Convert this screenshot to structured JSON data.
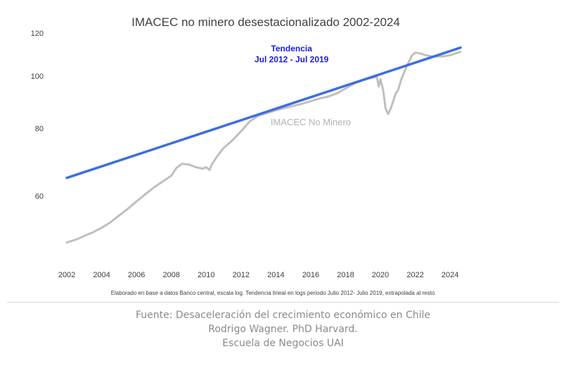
{
  "chart_data": {
    "type": "line",
    "title": "IMACEC no minero desestacionalizado 2002-2024",
    "note": "Elaborado en base a datos Banco central, escala log. Tendencia lineal en logs periodo Julio 2012- Julio 2019, extrapolada al resto",
    "xlabel": "",
    "ylabel": "",
    "log_scale_y": true,
    "xlim": [
      2002,
      2024.8
    ],
    "ylim": [
      47,
      120
    ],
    "x_ticks": [
      2002,
      2004,
      2006,
      2008,
      2010,
      2012,
      2014,
      2016,
      2018,
      2020,
      2022,
      2024
    ],
    "y_ticks": [
      60,
      80,
      100,
      120
    ],
    "grid": false,
    "annotations": [
      {
        "text": "Tendencia",
        "x": 2014.9,
        "y": 111,
        "color": "#1a1adb"
      },
      {
        "text": "Jul 2012 - Jul 2019",
        "x": 2014.9,
        "y": 106,
        "color": "#1a1adb"
      },
      {
        "text": "IMACEC No Minero",
        "x": 2016.0,
        "y": 81,
        "color": "#b3b3b3"
      }
    ],
    "series": [
      {
        "label": "IMACEC No Minero",
        "color": "#bfbfbf",
        "points": [
          [
            2002.0,
            49.2
          ],
          [
            2002.5,
            49.8
          ],
          [
            2003.0,
            50.6
          ],
          [
            2003.5,
            51.4
          ],
          [
            2004.0,
            52.4
          ],
          [
            2004.5,
            53.6
          ],
          [
            2005.0,
            55.2
          ],
          [
            2005.5,
            56.8
          ],
          [
            2006.0,
            58.6
          ],
          [
            2006.5,
            60.4
          ],
          [
            2007.0,
            62.2
          ],
          [
            2007.5,
            63.8
          ],
          [
            2008.0,
            65.4
          ],
          [
            2008.3,
            67.6
          ],
          [
            2008.6,
            68.8
          ],
          [
            2009.0,
            68.6
          ],
          [
            2009.4,
            67.8
          ],
          [
            2009.8,
            67.4
          ],
          [
            2010.0,
            67.8
          ],
          [
            2010.2,
            67.0
          ],
          [
            2010.3,
            68.4
          ],
          [
            2010.6,
            70.8
          ],
          [
            2011.0,
            73.6
          ],
          [
            2011.5,
            76.0
          ],
          [
            2012.0,
            79.0
          ],
          [
            2012.5,
            82.4
          ],
          [
            2013.0,
            84.4
          ],
          [
            2013.5,
            85.4
          ],
          [
            2014.0,
            86.4
          ],
          [
            2014.5,
            87.2
          ],
          [
            2015.0,
            88.0
          ],
          [
            2015.5,
            88.8
          ],
          [
            2016.0,
            89.8
          ],
          [
            2016.5,
            90.8
          ],
          [
            2017.0,
            91.6
          ],
          [
            2017.5,
            92.8
          ],
          [
            2018.0,
            94.8
          ],
          [
            2018.5,
            96.8
          ],
          [
            2019.0,
            98.2
          ],
          [
            2019.5,
            99.2
          ],
          [
            2019.8,
            99.6
          ],
          [
            2019.9,
            95.6
          ],
          [
            2020.0,
            98.6
          ],
          [
            2020.15,
            94.4
          ],
          [
            2020.3,
            87.0
          ],
          [
            2020.45,
            85.0
          ],
          [
            2020.6,
            87.2
          ],
          [
            2020.9,
            93.2
          ],
          [
            2021.0,
            93.8
          ],
          [
            2021.2,
            98.6
          ],
          [
            2021.5,
            104.0
          ],
          [
            2021.8,
            109.0
          ],
          [
            2022.0,
            110.4
          ],
          [
            2022.3,
            110.0
          ],
          [
            2022.6,
            109.2
          ],
          [
            2023.0,
            108.6
          ],
          [
            2023.5,
            108.6
          ],
          [
            2024.0,
            109.2
          ],
          [
            2024.3,
            110.0
          ],
          [
            2024.6,
            110.8
          ]
        ]
      },
      {
        "label": "Tendencia Jul 2012 - Jul 2019",
        "color": "#3b6fe0",
        "points": [
          [
            2002.0,
            64.8
          ],
          [
            2024.6,
            112.8
          ]
        ]
      }
    ]
  },
  "footer": {
    "line1": "Fuente: Desaceleración del crecimiento económico en Chile",
    "line2": "Rodrigo Wagner. PhD Harvard.",
    "line3": "Escuela de Negocios UAI"
  }
}
